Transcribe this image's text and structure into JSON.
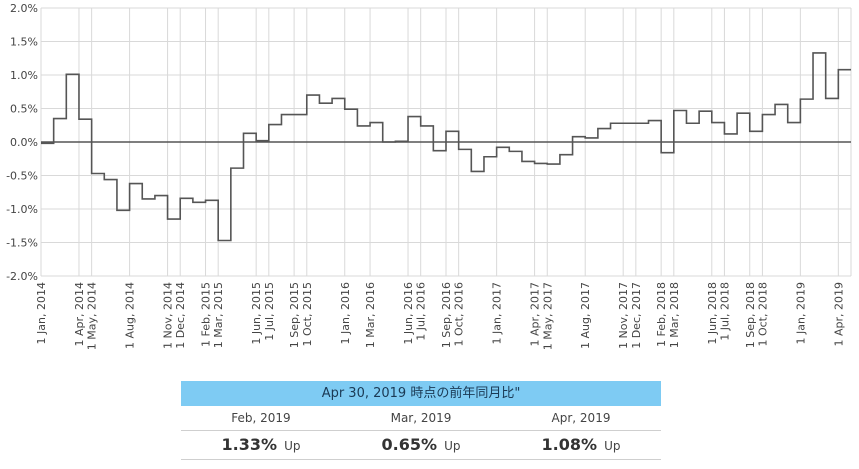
{
  "chart_data": {
    "type": "line",
    "step": true,
    "title": "",
    "xlabel": "",
    "ylabel": "",
    "ylim": [
      -2.0,
      2.0
    ],
    "y_ticks": [
      2.0,
      1.5,
      1.0,
      0.5,
      0.0,
      -0.5,
      -1.0,
      -1.5,
      -2.0
    ],
    "y_tick_labels": [
      "2.0%",
      "1.5%",
      "1.0%",
      "0.5%",
      "0.0%",
      "-0.5%",
      "-1.0%",
      "-1.5%",
      "-2.0%"
    ],
    "x_range": [
      "2014-01",
      "2019-05"
    ],
    "x_tick_labels": [
      {
        "date": "2014-01",
        "label": "1 Jan, 2014"
      },
      {
        "date": "2014-04",
        "label": "1 Apr, 2014"
      },
      {
        "date": "2014-05",
        "label": "1 May, 2014"
      },
      {
        "date": "2014-08",
        "label": "1 Aug, 2014"
      },
      {
        "date": "2014-11",
        "label": "1 Nov, 2014"
      },
      {
        "date": "2014-12",
        "label": "1 Dec, 2014"
      },
      {
        "date": "2015-02",
        "label": "1 Feb, 2015"
      },
      {
        "date": "2015-03",
        "label": "1 Mar, 2015"
      },
      {
        "date": "2015-06",
        "label": "1 Jun, 2015"
      },
      {
        "date": "2015-07",
        "label": "1 Jul, 2015"
      },
      {
        "date": "2015-09",
        "label": "1 Sep, 2015"
      },
      {
        "date": "2015-10",
        "label": "1 Oct, 2015"
      },
      {
        "date": "2016-01",
        "label": "1 Jan, 2016"
      },
      {
        "date": "2016-03",
        "label": "1 Mar, 2016"
      },
      {
        "date": "2016-06",
        "label": "1 Jun, 2016"
      },
      {
        "date": "2016-07",
        "label": "1 Jul, 2016"
      },
      {
        "date": "2016-09",
        "label": "1 Sep, 2016"
      },
      {
        "date": "2016-10",
        "label": "1 Oct, 2016"
      },
      {
        "date": "2017-01",
        "label": "1 Jan, 2017"
      },
      {
        "date": "2017-04",
        "label": "1 Apr, 2017"
      },
      {
        "date": "2017-05",
        "label": "1 May, 2017"
      },
      {
        "date": "2017-08",
        "label": "1 Aug, 2017"
      },
      {
        "date": "2017-11",
        "label": "1 Nov, 2017"
      },
      {
        "date": "2017-12",
        "label": "1 Dec, 2017"
      },
      {
        "date": "2018-02",
        "label": "1 Feb, 2018"
      },
      {
        "date": "2018-03",
        "label": "1 Mar, 2018"
      },
      {
        "date": "2018-06",
        "label": "1 Jun, 2018"
      },
      {
        "date": "2018-07",
        "label": "1 Jul, 2018"
      },
      {
        "date": "2018-09",
        "label": "1 Sep, 2018"
      },
      {
        "date": "2018-10",
        "label": "1 Oct, 2018"
      },
      {
        "date": "2019-01",
        "label": "1 Jan, 2019"
      },
      {
        "date": "2019-04",
        "label": "1 Apr, 2019"
      }
    ],
    "grid": true,
    "zero_line": true,
    "series": [
      {
        "x": [
          "2014-01",
          "2014-02",
          "2014-03",
          "2014-04",
          "2014-05",
          "2014-06",
          "2014-07",
          "2014-08",
          "2014-09",
          "2014-10",
          "2014-11",
          "2014-12",
          "2015-01",
          "2015-02",
          "2015-03",
          "2015-04",
          "2015-05",
          "2015-06",
          "2015-07",
          "2015-08",
          "2015-09",
          "2015-10",
          "2015-11",
          "2015-12",
          "2016-01",
          "2016-02",
          "2016-03",
          "2016-04",
          "2016-05",
          "2016-06",
          "2016-07",
          "2016-08",
          "2016-09",
          "2016-10",
          "2016-11",
          "2016-12",
          "2017-01",
          "2017-02",
          "2017-03",
          "2017-04",
          "2017-05",
          "2017-06",
          "2017-07",
          "2017-08",
          "2017-09",
          "2017-10",
          "2017-11",
          "2017-12",
          "2018-01",
          "2018-02",
          "2018-03",
          "2018-04",
          "2018-05",
          "2018-06",
          "2018-07",
          "2018-08",
          "2018-09",
          "2018-10",
          "2018-11",
          "2018-12",
          "2019-01",
          "2019-02",
          "2019-03",
          "2019-04"
        ],
        "values": [
          -0.02,
          0.35,
          1.01,
          0.34,
          -0.47,
          -0.56,
          -1.02,
          -0.62,
          -0.85,
          -0.8,
          -1.15,
          -0.84,
          -0.9,
          -0.87,
          -1.47,
          -0.39,
          0.13,
          0.02,
          0.26,
          0.41,
          0.41,
          0.7,
          0.58,
          0.65,
          0.49,
          0.24,
          0.29,
          0.0,
          0.01,
          0.38,
          0.24,
          -0.13,
          0.16,
          -0.11,
          -0.44,
          -0.22,
          -0.08,
          -0.14,
          -0.29,
          -0.32,
          -0.33,
          -0.19,
          0.08,
          0.06,
          0.2,
          0.28,
          0.28,
          0.28,
          0.32,
          -0.16,
          0.47,
          0.28,
          0.46,
          0.29,
          0.12,
          0.43,
          0.16,
          0.41,
          0.56,
          0.29,
          0.64,
          1.33,
          0.65,
          1.08
        ],
        "color": "#555555"
      }
    ]
  },
  "summary": {
    "header": "Apr 30, 2019 時点の前年同月比\"",
    "columns": [
      {
        "label": "Feb, 2019",
        "value": "1.33%",
        "direction": "Up"
      },
      {
        "label": "Mar, 2019",
        "value": "0.65%",
        "direction": "Up"
      },
      {
        "label": "Apr, 2019",
        "value": "1.08%",
        "direction": "Up"
      }
    ]
  },
  "colors": {
    "line": "#555555",
    "zero_line": "#555555",
    "grid": "#d9d9d9",
    "header_bg": "#7ecbf3"
  }
}
